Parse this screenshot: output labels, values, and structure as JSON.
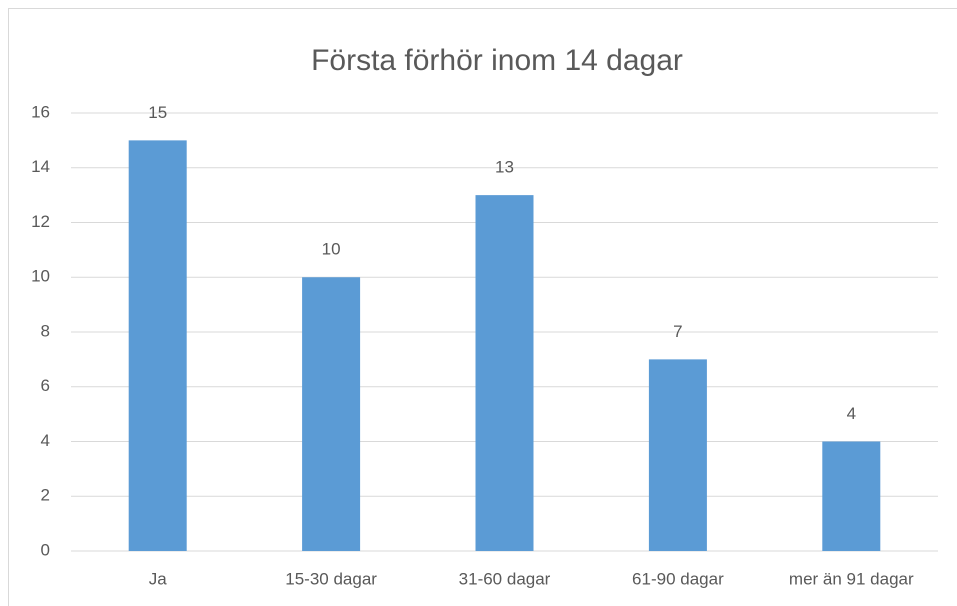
{
  "chart_data": {
    "type": "bar",
    "title": "Första förhör inom 14 dagar",
    "categories": [
      "Ja",
      "15-30 dagar",
      "31-60 dagar",
      "61-90 dagar",
      "mer än 91 dagar"
    ],
    "values": [
      15,
      10,
      13,
      7,
      4
    ],
    "color": "#5b9bd5",
    "ylim": [
      0,
      16
    ],
    "yticks": [
      0,
      2,
      4,
      6,
      8,
      10,
      12,
      14,
      16
    ],
    "grid": true
  }
}
